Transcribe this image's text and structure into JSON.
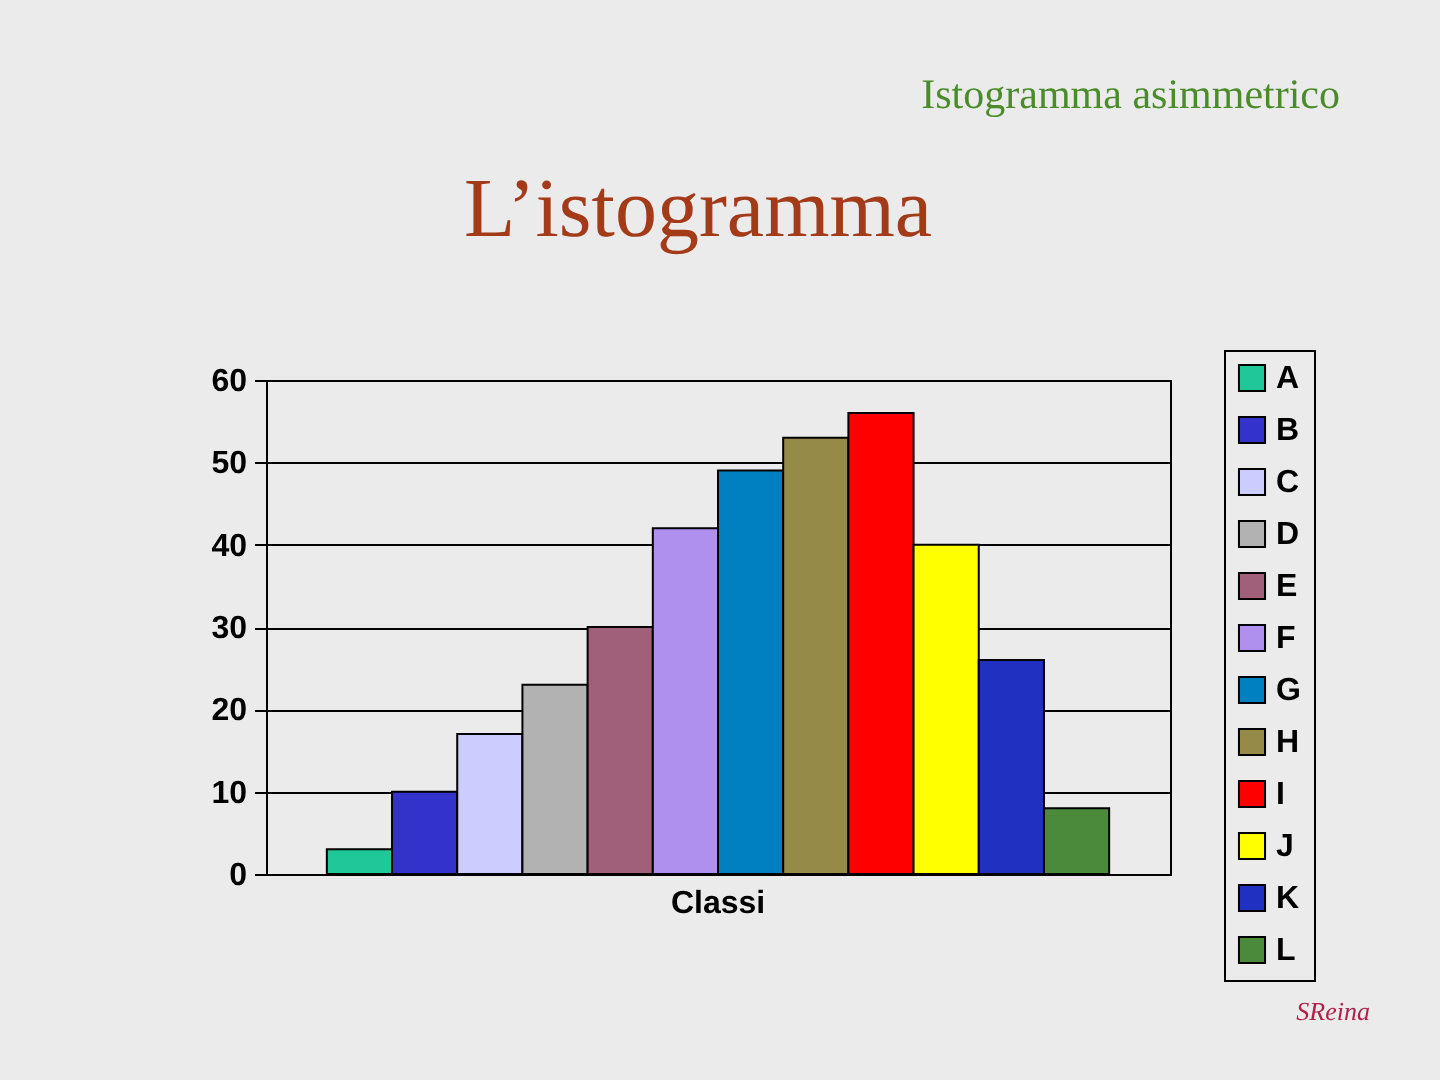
{
  "chart_data": {
    "type": "bar",
    "title": "L’istogramma",
    "subtitle": "Istogramma asimmetrico",
    "categories": [
      "Classi"
    ],
    "series": [
      {
        "name": "A",
        "color": "#1fc896",
        "values": [
          3
        ]
      },
      {
        "name": "B",
        "color": "#3333cc",
        "values": [
          10
        ]
      },
      {
        "name": "C",
        "color": "#ccccff",
        "values": [
          17
        ]
      },
      {
        "name": "D",
        "color": "#b2b2b2",
        "values": [
          23
        ]
      },
      {
        "name": "E",
        "color": "#a0607a",
        "values": [
          30
        ]
      },
      {
        "name": "F",
        "color": "#b090ee",
        "values": [
          42
        ]
      },
      {
        "name": "G",
        "color": "#0080c0",
        "values": [
          49
        ]
      },
      {
        "name": "H",
        "color": "#968a48",
        "values": [
          53
        ]
      },
      {
        "name": "I",
        "color": "#ff0000",
        "values": [
          56
        ]
      },
      {
        "name": "J",
        "color": "#ffff00",
        "values": [
          40
        ]
      },
      {
        "name": "K",
        "color": "#2030c0",
        "values": [
          26
        ]
      },
      {
        "name": "L",
        "color": "#4a8a3a",
        "values": [
          8
        ]
      }
    ],
    "ylim": [
      0,
      60
    ],
    "yticks": [
      0,
      10,
      20,
      30,
      40,
      50,
      60
    ],
    "grid": "y",
    "legend": "right",
    "annotations": [
      "SReina"
    ]
  }
}
